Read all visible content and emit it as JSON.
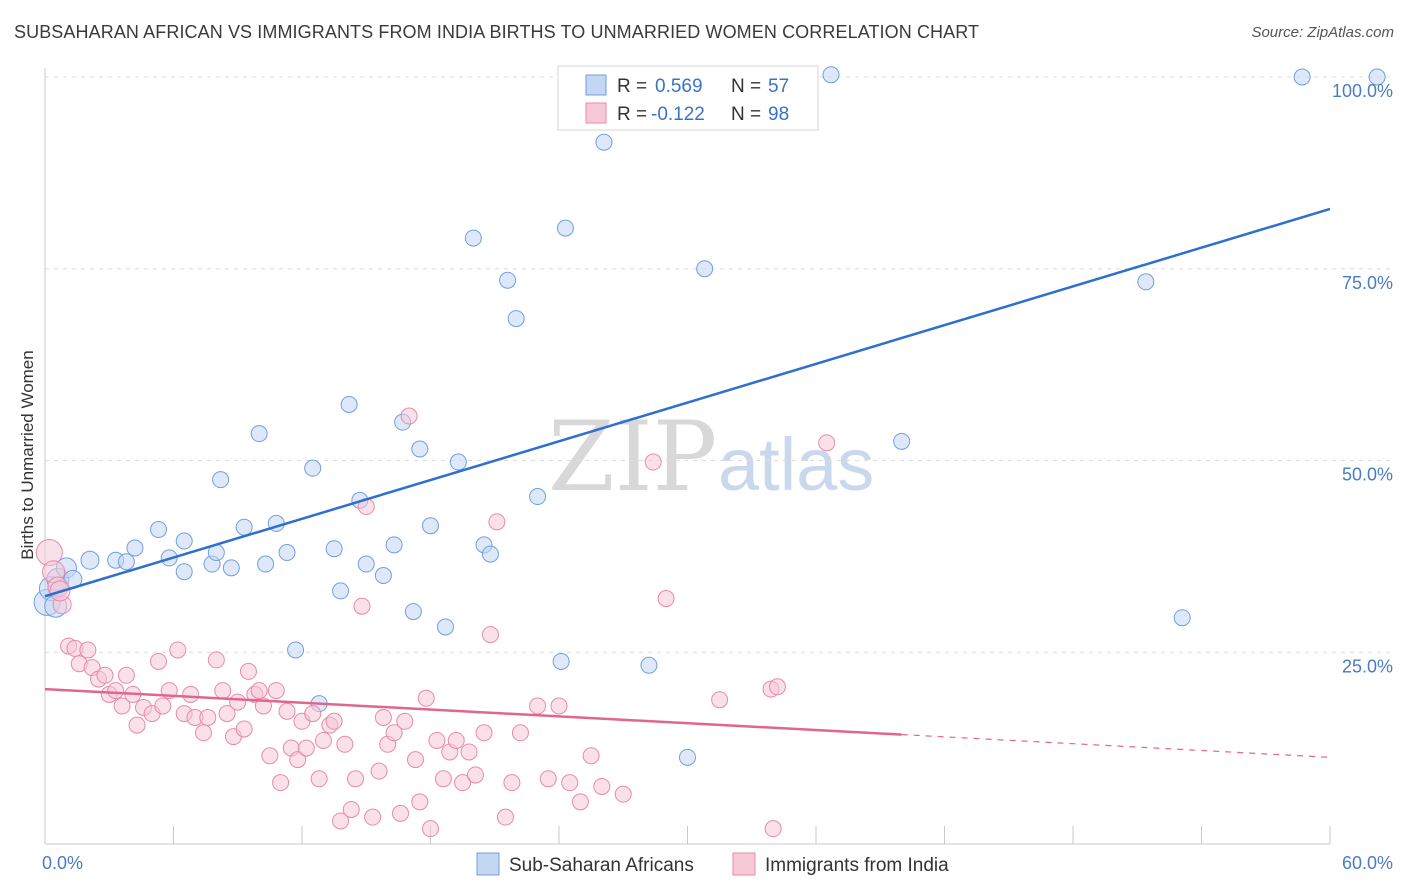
{
  "title": "SUBSAHARAN AFRICAN VS IMMIGRANTS FROM INDIA BIRTHS TO UNMARRIED WOMEN CORRELATION CHART",
  "source": "Source: ZipAtlas.com",
  "watermark": {
    "part1": "ZIP",
    "part2": "atlas"
  },
  "legend": {
    "r_label": "R =",
    "n_label": "N =",
    "rows": [
      {
        "r": "0.569",
        "n": "57",
        "color": "#6fa0e0"
      },
      {
        "r": "-0.122",
        "n": "98",
        "color": "#e88aa8"
      }
    ]
  },
  "chart_data": {
    "type": "scatter",
    "title": "SUBSAHARAN AFRICAN VS IMMIGRANTS FROM INDIA BIRTHS TO UNMARRIED WOMEN CORRELATION CHART",
    "xlabel": "",
    "ylabel": "Births to Unmarried Women",
    "xlim": [
      0,
      60
    ],
    "ylim": [
      0,
      100
    ],
    "x_tick_labels": [
      "0.0%",
      "60.0%"
    ],
    "y_ticks": [
      25,
      50,
      75,
      100
    ],
    "y_tick_labels": [
      "25.0%",
      "50.0%",
      "75.0%",
      "100.0%"
    ],
    "grid": true,
    "legend_position": "top-center",
    "series": [
      {
        "name": "Sub-Saharan Africans",
        "color": "#6fa0e0",
        "fill": "#c3d6f2",
        "trend": {
          "x": [
            0,
            60
          ],
          "y": [
            32.3,
            82.8
          ],
          "dashed_from": null
        },
        "points": [
          [
            0.1,
            31.5,
            11
          ],
          [
            0.3,
            33.3,
            10
          ],
          [
            0.6,
            34.5,
            9
          ],
          [
            1.0,
            36.0,
            8
          ],
          [
            1.3,
            34.5,
            7
          ],
          [
            2.1,
            37.0,
            7
          ],
          [
            3.3,
            37.0,
            6
          ],
          [
            3.8,
            36.8,
            6
          ],
          [
            4.2,
            38.6,
            6
          ],
          [
            5.3,
            41.0,
            6
          ],
          [
            5.8,
            37.3,
            6
          ],
          [
            6.5,
            39.5,
            6
          ],
          [
            6.5,
            35.5,
            6
          ],
          [
            7.8,
            36.5,
            6
          ],
          [
            8.0,
            38.0,
            6
          ],
          [
            8.2,
            47.5,
            6
          ],
          [
            8.7,
            36.0,
            6
          ],
          [
            9.3,
            41.3,
            6
          ],
          [
            10.3,
            36.5,
            6
          ],
          [
            10.0,
            53.5,
            6
          ],
          [
            10.8,
            41.8,
            6
          ],
          [
            11.3,
            38.0,
            6
          ],
          [
            11.7,
            25.3,
            6
          ],
          [
            12.5,
            49.0,
            6
          ],
          [
            12.8,
            18.3,
            6
          ],
          [
            13.5,
            38.5,
            6
          ],
          [
            13.8,
            33.0,
            6
          ],
          [
            14.2,
            57.3,
            6
          ],
          [
            14.7,
            44.8,
            6
          ],
          [
            15.0,
            36.5,
            6
          ],
          [
            15.8,
            35.0,
            6
          ],
          [
            16.3,
            39.0,
            6
          ],
          [
            16.7,
            55.0,
            6
          ],
          [
            17.2,
            30.3,
            6
          ],
          [
            17.5,
            51.5,
            6
          ],
          [
            18.0,
            41.5,
            6
          ],
          [
            18.7,
            28.3,
            6
          ],
          [
            19.3,
            49.8,
            6
          ],
          [
            20.0,
            79.0,
            6
          ],
          [
            20.5,
            39.0,
            6
          ],
          [
            20.8,
            37.8,
            6
          ],
          [
            21.6,
            73.5,
            6
          ],
          [
            22.0,
            68.5,
            6
          ],
          [
            23.0,
            45.3,
            6
          ],
          [
            24.1,
            23.8,
            6
          ],
          [
            24.3,
            80.3,
            6
          ],
          [
            26.1,
            91.5,
            6
          ],
          [
            28.2,
            23.3,
            6
          ],
          [
            30.0,
            11.3,
            6
          ],
          [
            30.8,
            75.0,
            6
          ],
          [
            36.7,
            100.3,
            6
          ],
          [
            40.0,
            52.5,
            6
          ],
          [
            51.4,
            73.3,
            6
          ],
          [
            53.1,
            29.5,
            6
          ],
          [
            58.7,
            100.0,
            6
          ],
          [
            62.2,
            100.0,
            6
          ],
          [
            0.5,
            31.0,
            9
          ]
        ]
      },
      {
        "name": "Immigrants from India",
        "color": "#e88aa8",
        "fill": "#f6c9d7",
        "trend": {
          "x": [
            0,
            60
          ],
          "y": [
            20.2,
            11.3
          ],
          "dashed_from": 40.0
        },
        "points": [
          [
            0.2,
            38.0,
            11
          ],
          [
            0.4,
            35.5,
            9
          ],
          [
            0.6,
            33.5,
            8
          ],
          [
            0.8,
            31.2,
            7
          ],
          [
            1.1,
            25.8,
            6
          ],
          [
            1.4,
            25.5,
            6
          ],
          [
            1.6,
            23.5,
            6
          ],
          [
            2.0,
            25.3,
            6
          ],
          [
            2.2,
            23.0,
            6
          ],
          [
            2.5,
            21.5,
            6
          ],
          [
            2.8,
            22.0,
            6
          ],
          [
            3.0,
            19.5,
            6
          ],
          [
            3.3,
            20.0,
            6
          ],
          [
            3.6,
            18.0,
            6
          ],
          [
            3.8,
            22.0,
            6
          ],
          [
            4.1,
            19.5,
            6
          ],
          [
            4.3,
            15.5,
            6
          ],
          [
            4.6,
            17.8,
            6
          ],
          [
            5.0,
            17.0,
            6
          ],
          [
            5.3,
            23.8,
            6
          ],
          [
            5.5,
            18.0,
            6
          ],
          [
            5.8,
            20.0,
            6
          ],
          [
            6.2,
            25.3,
            6
          ],
          [
            6.5,
            17.0,
            6
          ],
          [
            6.8,
            19.5,
            6
          ],
          [
            7.0,
            16.5,
            6
          ],
          [
            7.4,
            14.5,
            6
          ],
          [
            7.6,
            16.5,
            6
          ],
          [
            8.0,
            24.0,
            6
          ],
          [
            8.3,
            20.0,
            6
          ],
          [
            8.5,
            17.0,
            6
          ],
          [
            8.8,
            14.0,
            6
          ],
          [
            9.0,
            18.5,
            6
          ],
          [
            9.3,
            15.0,
            6
          ],
          [
            9.5,
            22.5,
            6
          ],
          [
            9.8,
            19.5,
            6
          ],
          [
            10.0,
            20.0,
            6
          ],
          [
            10.2,
            18.0,
            6
          ],
          [
            10.5,
            11.5,
            6
          ],
          [
            10.8,
            20.0,
            6
          ],
          [
            11.0,
            8.0,
            6
          ],
          [
            11.3,
            17.3,
            6
          ],
          [
            11.5,
            12.5,
            6
          ],
          [
            11.8,
            11.0,
            6
          ],
          [
            12.0,
            16.0,
            6
          ],
          [
            12.2,
            12.5,
            6
          ],
          [
            12.5,
            17.0,
            6
          ],
          [
            12.8,
            8.5,
            6
          ],
          [
            13.0,
            13.5,
            6
          ],
          [
            13.3,
            15.5,
            6
          ],
          [
            13.5,
            16.0,
            6
          ],
          [
            13.8,
            3.0,
            6
          ],
          [
            14.0,
            13.0,
            6
          ],
          [
            14.3,
            4.5,
            6
          ],
          [
            14.5,
            8.5,
            6
          ],
          [
            14.8,
            31.0,
            6
          ],
          [
            15.0,
            44.0,
            6
          ],
          [
            15.3,
            3.5,
            6
          ],
          [
            15.6,
            9.5,
            6
          ],
          [
            15.8,
            16.5,
            6
          ],
          [
            16.0,
            13.0,
            6
          ],
          [
            16.3,
            14.5,
            6
          ],
          [
            16.6,
            4.0,
            6
          ],
          [
            16.8,
            16.0,
            6
          ],
          [
            17.0,
            55.8,
            6
          ],
          [
            17.3,
            11.0,
            6
          ],
          [
            17.5,
            5.5,
            6
          ],
          [
            17.8,
            19.0,
            6
          ],
          [
            18.0,
            2.0,
            6
          ],
          [
            18.3,
            13.5,
            6
          ],
          [
            18.6,
            8.5,
            6
          ],
          [
            18.9,
            12.0,
            6
          ],
          [
            19.2,
            13.5,
            6
          ],
          [
            19.5,
            8.0,
            6
          ],
          [
            19.8,
            12.0,
            6
          ],
          [
            20.1,
            9.0,
            6
          ],
          [
            20.5,
            14.5,
            6
          ],
          [
            20.8,
            27.3,
            6
          ],
          [
            21.1,
            42.0,
            6
          ],
          [
            21.5,
            3.5,
            6
          ],
          [
            21.8,
            8.0,
            6
          ],
          [
            22.2,
            14.5,
            6
          ],
          [
            23.0,
            18.0,
            6
          ],
          [
            23.5,
            8.5,
            6
          ],
          [
            24.0,
            18.0,
            6
          ],
          [
            24.5,
            8.0,
            6
          ],
          [
            25.0,
            5.5,
            6
          ],
          [
            25.5,
            11.5,
            6
          ],
          [
            26.0,
            7.5,
            6
          ],
          [
            27.0,
            6.5,
            6
          ],
          [
            28.4,
            49.8,
            6
          ],
          [
            29.0,
            32.0,
            6
          ],
          [
            31.5,
            18.8,
            6
          ],
          [
            33.9,
            20.2,
            6
          ],
          [
            34.2,
            20.5,
            6
          ],
          [
            34.0,
            2.0,
            6
          ],
          [
            36.5,
            52.3,
            6
          ],
          [
            0.7,
            33.0,
            8
          ]
        ]
      }
    ]
  }
}
